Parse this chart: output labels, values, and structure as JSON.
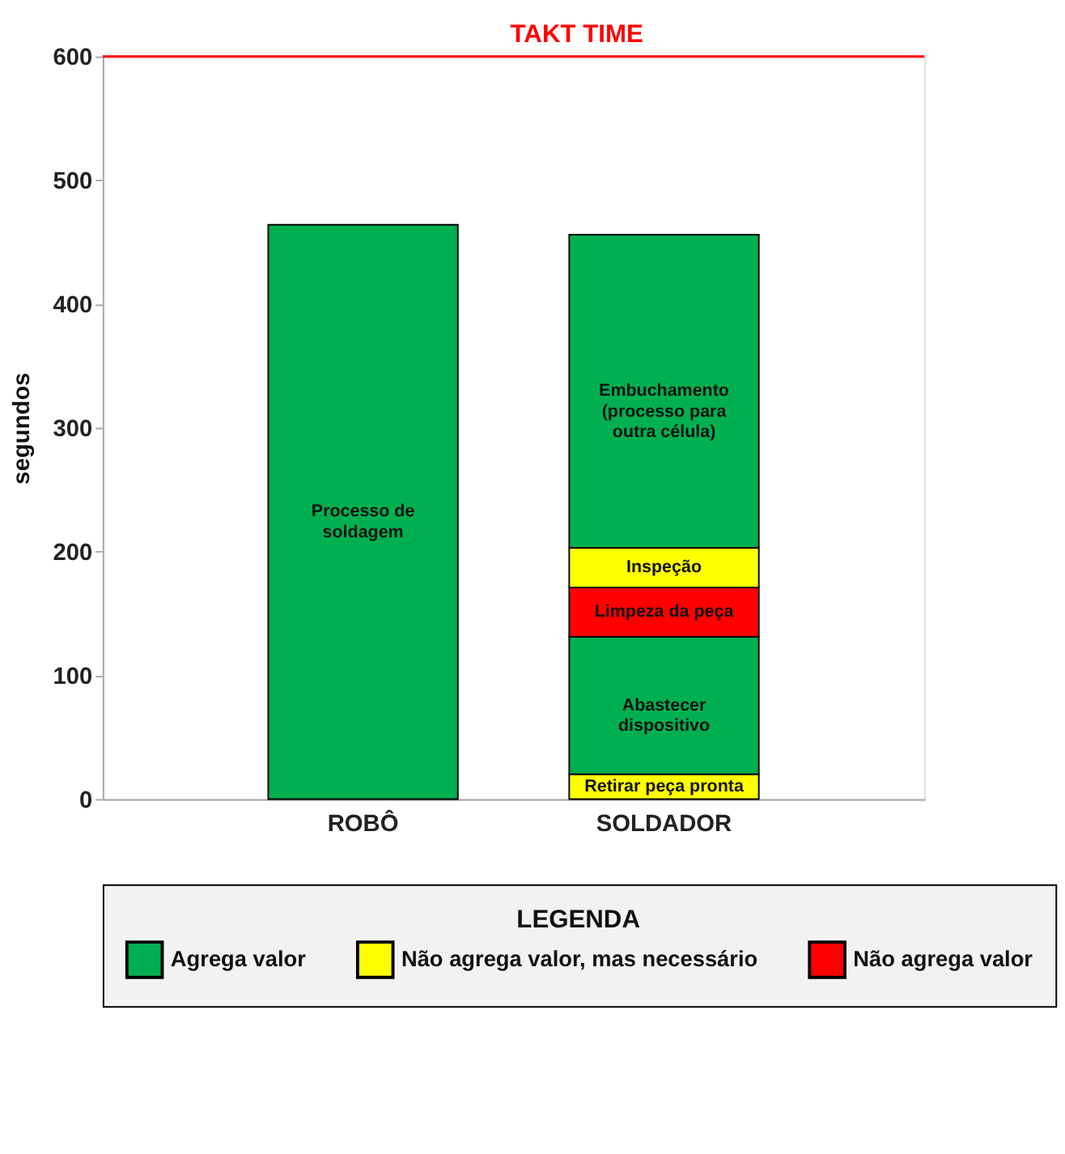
{
  "chart_data": [
    {
      "type": "bar",
      "stacked": true,
      "ylabel": "segundos",
      "categories": [
        "ROBÔ",
        "SOLDADOR"
      ],
      "series": [
        {
          "name": "Processo de soldagem",
          "color": "#00b050",
          "values": [
            464,
            null
          ]
        },
        {
          "name": "Retirar peça pronta",
          "color": "#ffff00",
          "values": [
            null,
            20
          ]
        },
        {
          "name": "Abastecer dispositivo",
          "color": "#00b050",
          "values": [
            null,
            111
          ]
        },
        {
          "name": "Limpeza da peça",
          "color": "#ff0000",
          "values": [
            null,
            40
          ]
        },
        {
          "name": "Inspeção",
          "color": "#ffff00",
          "values": [
            null,
            32
          ]
        },
        {
          "name": "Embuchamento (processo para outra célula)",
          "color": "#00b050",
          "values": [
            null,
            253
          ]
        }
      ],
      "ylim": [
        0,
        600
      ],
      "yticks": [
        0,
        100,
        200,
        300,
        400,
        500,
        600
      ],
      "grid": false,
      "ref_lines": [
        {
          "axis": "y",
          "value": 600,
          "label": "TAKT TIME",
          "color": "#ff0000"
        }
      ]
    },
    {
      "type": "other",
      "title": "LEGENDA",
      "categories": [
        "Agrega valor",
        "Não agrega valor, mas necessário",
        "Não agrega valor"
      ],
      "colors": [
        "#00b050",
        "#ffff00",
        "#ff0000"
      ]
    }
  ]
}
